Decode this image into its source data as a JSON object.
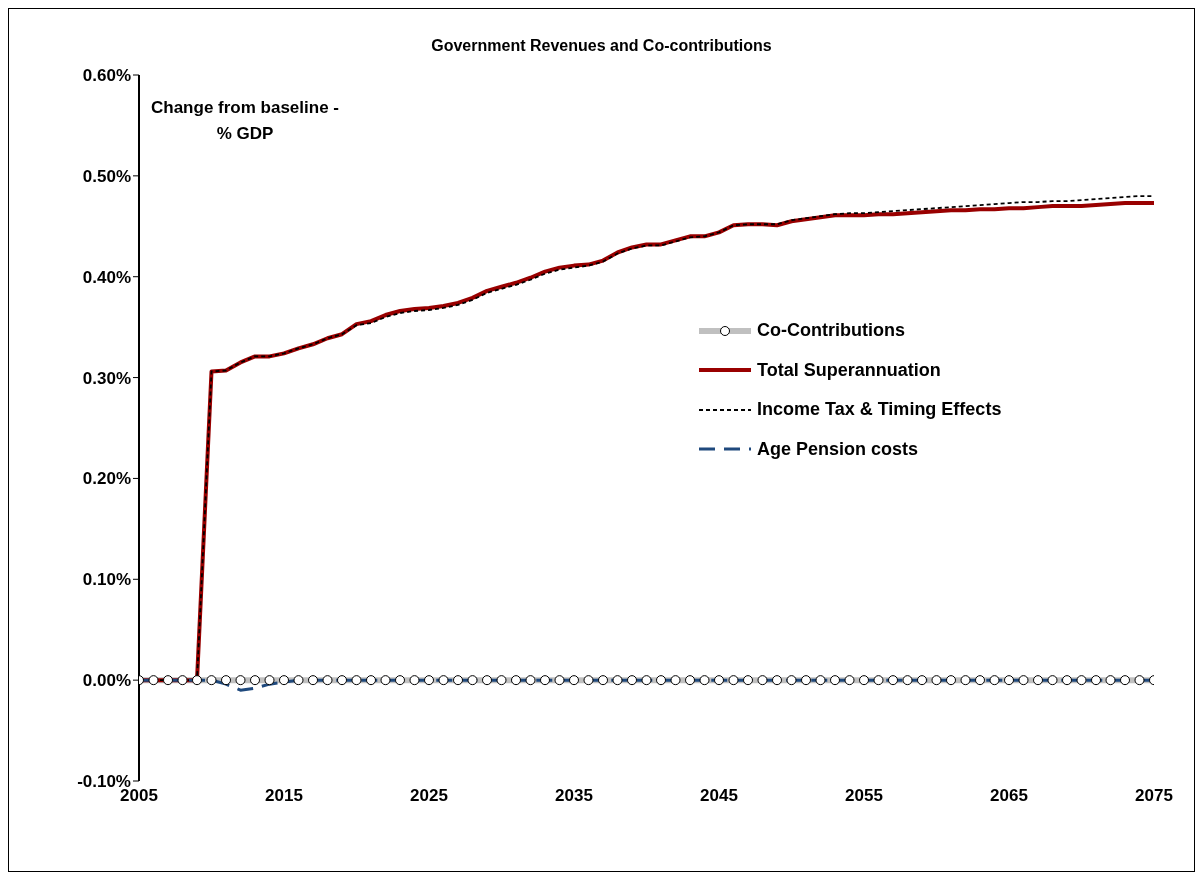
{
  "chart_data": {
    "type": "line",
    "title": "Government Revenues and Co-contributions",
    "ylabel": "Change from baseline - % GDP",
    "x": [
      2005,
      2006,
      2007,
      2008,
      2009,
      2010,
      2011,
      2012,
      2013,
      2014,
      2015,
      2016,
      2017,
      2018,
      2019,
      2020,
      2021,
      2022,
      2023,
      2024,
      2025,
      2026,
      2027,
      2028,
      2029,
      2030,
      2031,
      2032,
      2033,
      2034,
      2035,
      2036,
      2037,
      2038,
      2039,
      2040,
      2041,
      2042,
      2043,
      2044,
      2045,
      2046,
      2047,
      2048,
      2049,
      2050,
      2051,
      2052,
      2053,
      2054,
      2055,
      2056,
      2057,
      2058,
      2059,
      2060,
      2061,
      2062,
      2063,
      2064,
      2065,
      2066,
      2067,
      2068,
      2069,
      2070,
      2071,
      2072,
      2073,
      2074,
      2075
    ],
    "series": [
      {
        "name": "Co-Contributions",
        "color": "#c0c0c0",
        "marker": "circle",
        "line_style": "solid",
        "values": [
          0,
          0,
          0,
          0,
          0,
          0,
          0,
          0,
          0,
          0,
          0,
          0,
          0,
          0,
          0,
          0,
          0,
          0,
          0,
          0,
          0,
          0,
          0,
          0,
          0,
          0,
          0,
          0,
          0,
          0,
          0,
          0,
          0,
          0,
          0,
          0,
          0,
          0,
          0,
          0,
          0,
          0,
          0,
          0,
          0,
          0,
          0,
          0,
          0,
          0,
          0,
          0,
          0,
          0,
          0,
          0,
          0,
          0,
          0,
          0,
          0,
          0,
          0,
          0,
          0,
          0,
          0,
          0,
          0,
          0,
          0
        ]
      },
      {
        "name": "Total Superannuation",
        "color": "#990000",
        "marker": "none",
        "line_style": "solid",
        "values": [
          0,
          0,
          0,
          0,
          0,
          0.306,
          0.307,
          0.315,
          0.321,
          0.321,
          0.324,
          0.329,
          0.333,
          0.339,
          0.343,
          0.353,
          0.356,
          0.362,
          0.366,
          0.368,
          0.369,
          0.371,
          0.374,
          0.379,
          0.386,
          0.39,
          0.394,
          0.399,
          0.405,
          0.409,
          0.411,
          0.412,
          0.416,
          0.424,
          0.429,
          0.432,
          0.432,
          0.436,
          0.44,
          0.44,
          0.444,
          0.451,
          0.452,
          0.452,
          0.451,
          0.455,
          0.457,
          0.459,
          0.461,
          0.461,
          0.461,
          0.462,
          0.462,
          0.463,
          0.464,
          0.465,
          0.466,
          0.466,
          0.467,
          0.467,
          0.468,
          0.468,
          0.469,
          0.47,
          0.47,
          0.47,
          0.471,
          0.472,
          0.473,
          0.473,
          0.473
        ]
      },
      {
        "name": "Income Tax & Timing Effects",
        "color": "#000000",
        "marker": "none",
        "line_style": "dotted",
        "values": [
          0,
          0,
          0,
          0,
          0,
          0.306,
          0.307,
          0.315,
          0.321,
          0.321,
          0.324,
          0.329,
          0.333,
          0.339,
          0.343,
          0.352,
          0.354,
          0.36,
          0.364,
          0.366,
          0.367,
          0.369,
          0.372,
          0.377,
          0.384,
          0.388,
          0.392,
          0.397,
          0.403,
          0.407,
          0.409,
          0.411,
          0.415,
          0.423,
          0.428,
          0.431,
          0.431,
          0.435,
          0.439,
          0.44,
          0.444,
          0.451,
          0.452,
          0.452,
          0.452,
          0.456,
          0.458,
          0.46,
          0.462,
          0.463,
          0.463,
          0.464,
          0.465,
          0.466,
          0.467,
          0.468,
          0.469,
          0.47,
          0.471,
          0.472,
          0.473,
          0.474,
          0.474,
          0.475,
          0.475,
          0.476,
          0.477,
          0.478,
          0.479,
          0.48,
          0.48
        ]
      },
      {
        "name": "Age Pension costs",
        "color": "#1f497d",
        "marker": "none",
        "line_style": "dashed",
        "values": [
          0,
          0,
          0,
          0,
          0,
          0,
          -0.004,
          -0.01,
          -0.008,
          -0.004,
          -0.002,
          0,
          0,
          0,
          0,
          0,
          0,
          0,
          0,
          0,
          0,
          0,
          0,
          0,
          0,
          0,
          0,
          0,
          0,
          0,
          0,
          0,
          0,
          0,
          0,
          0,
          0,
          0,
          0,
          0,
          0,
          0,
          0,
          0,
          0,
          0,
          0,
          0,
          0,
          0,
          0,
          0,
          0,
          0,
          0,
          0,
          0,
          0,
          0,
          0,
          0,
          0,
          0,
          0,
          0,
          0,
          0,
          0,
          0,
          0,
          0
        ]
      }
    ],
    "xlim": [
      2005,
      2075
    ],
    "xticks": [
      2005,
      2015,
      2025,
      2035,
      2045,
      2055,
      2065,
      2075
    ],
    "ylim": [
      -0.1,
      0.6
    ],
    "yticks": [
      {
        "value": -0.1,
        "label": "-0.10%"
      },
      {
        "value": 0,
        "label": "0.00%"
      },
      {
        "value": 0.1,
        "label": "0.10%"
      },
      {
        "value": 0.2,
        "label": "0.20%"
      },
      {
        "value": 0.3,
        "label": "0.30%"
      },
      {
        "value": 0.4,
        "label": "0.40%"
      },
      {
        "value": 0.5,
        "label": "0.50%"
      },
      {
        "value": 0.6,
        "label": "0.60%"
      }
    ],
    "grid": false,
    "legend": "right"
  }
}
